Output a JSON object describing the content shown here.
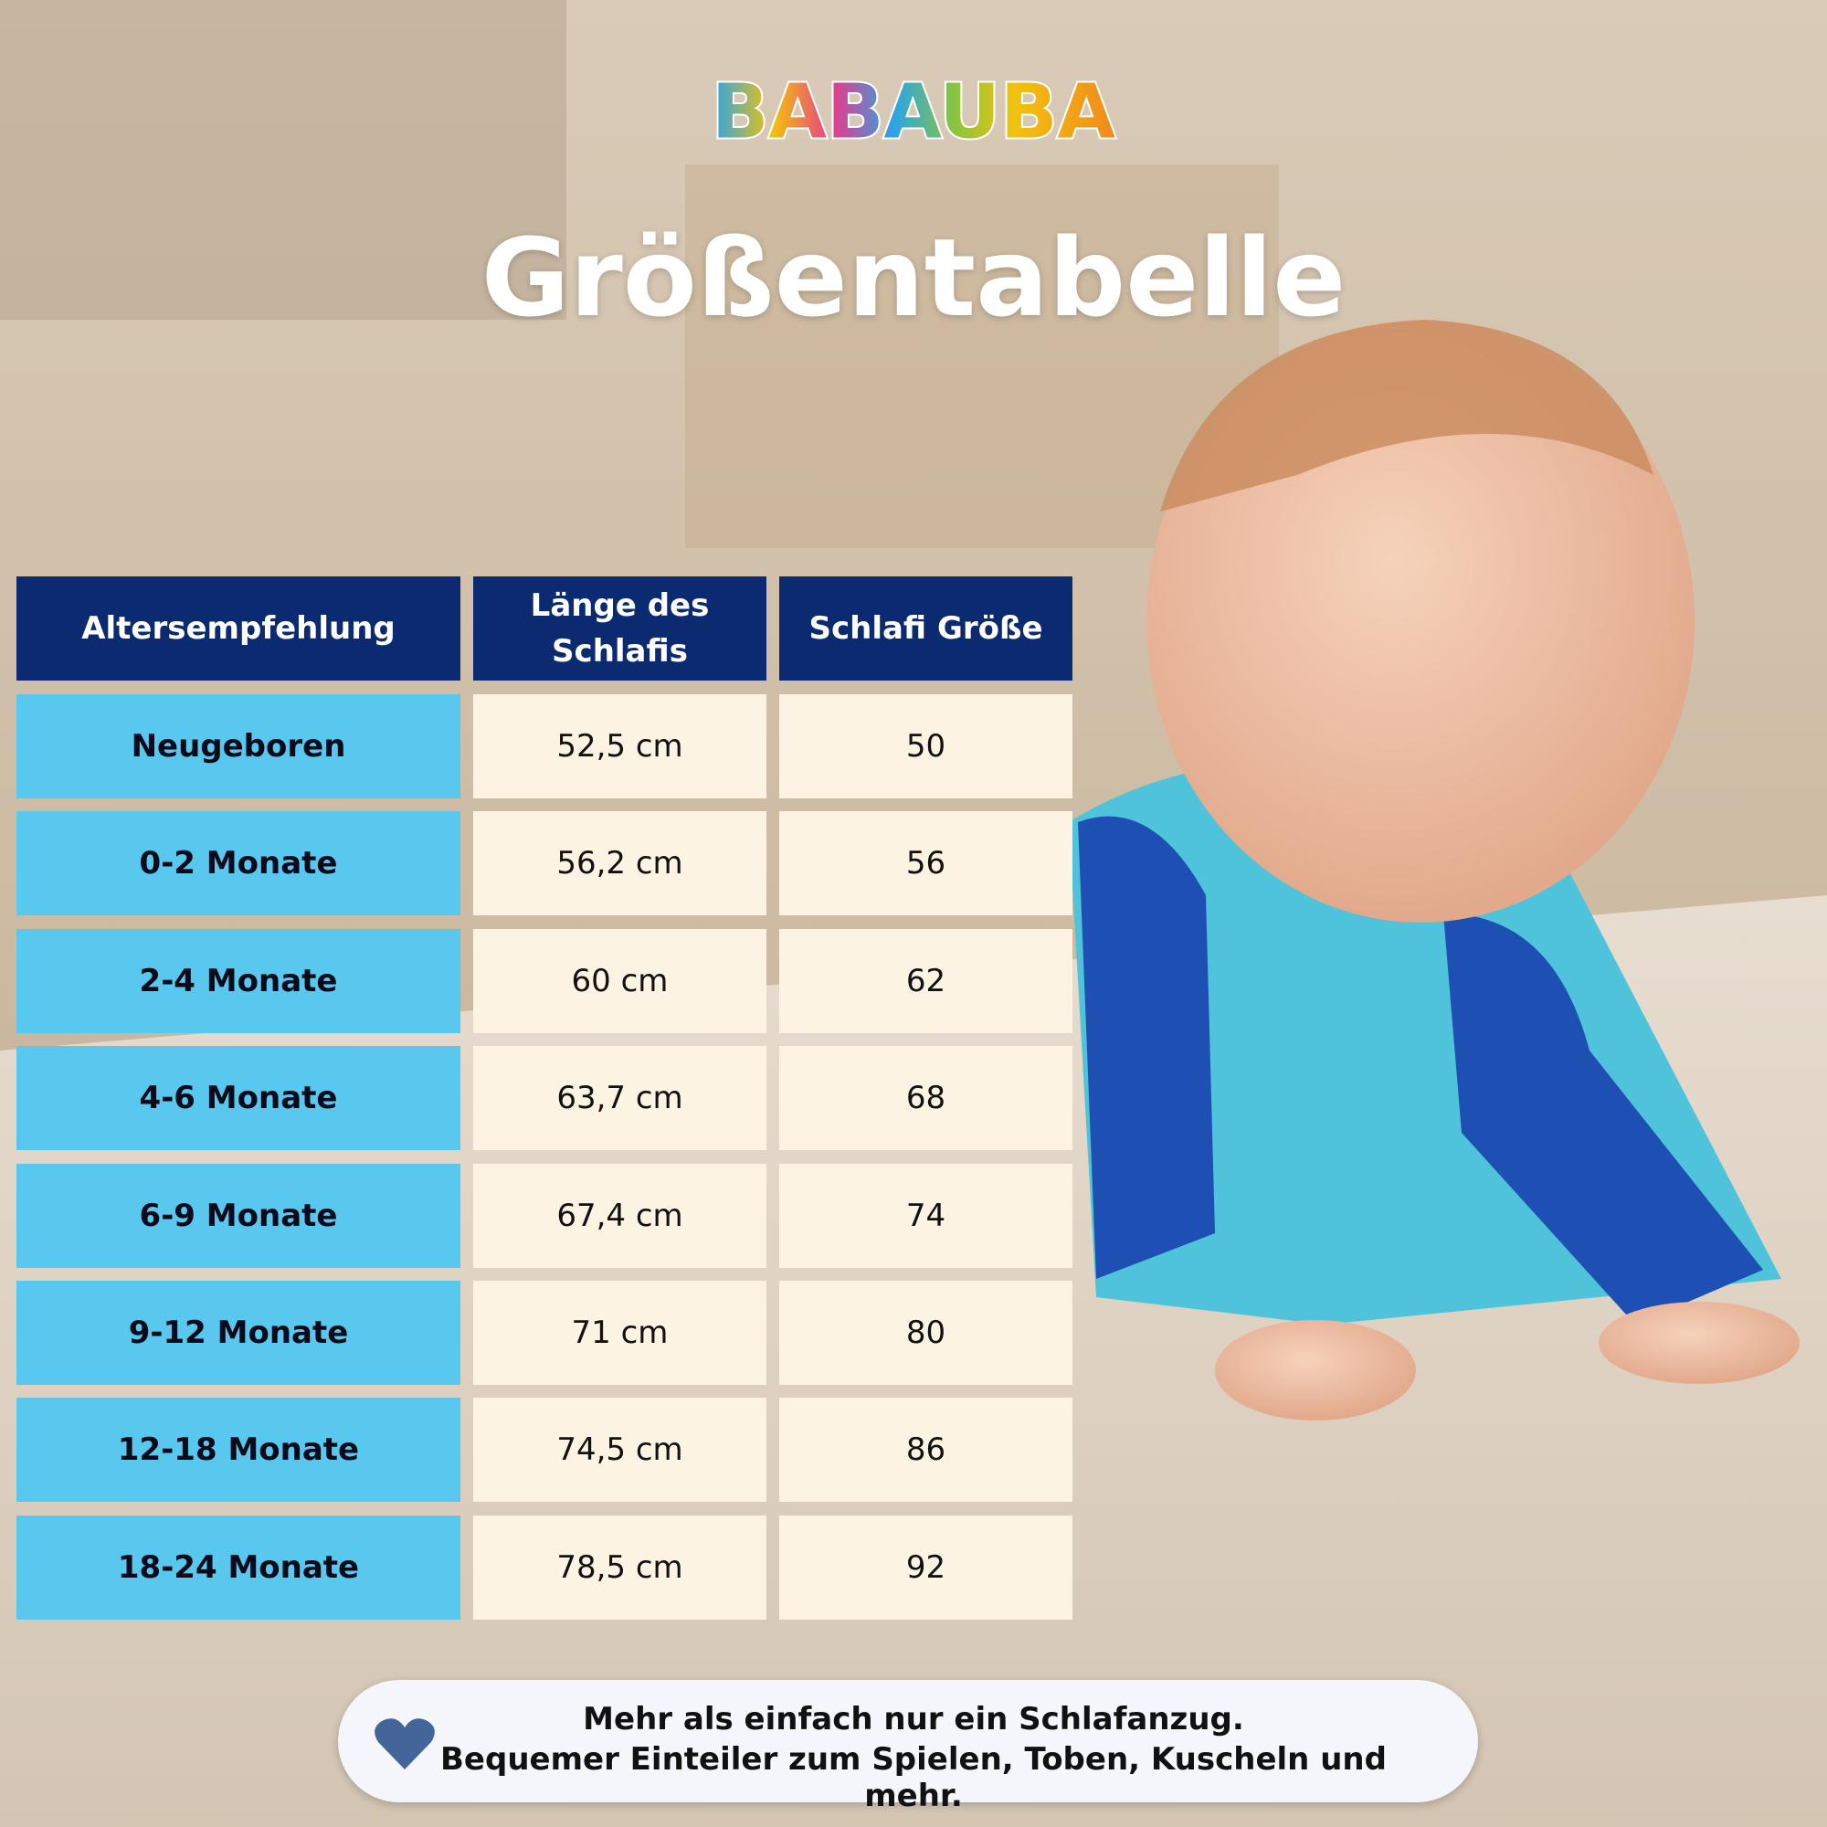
{
  "logo": "BABAUBA",
  "title": "Größentabelle",
  "table": {
    "header": [
      "Altersempfehlung",
      "Länge des Schlafis",
      "Schlafi Größe"
    ],
    "rows": [
      [
        "Neugeboren",
        "52,5 cm",
        "50"
      ],
      [
        "0-2 Monate",
        "56,2 cm",
        "56"
      ],
      [
        "2-4 Monate",
        "60 cm",
        "62"
      ],
      [
        "4-6 Monate",
        "63,7 cm",
        "68"
      ],
      [
        "6-9 Monate",
        "67,4 cm",
        "74"
      ],
      [
        "9-12 Monate",
        "71 cm",
        "80"
      ],
      [
        "12-18 Monate",
        "74,5 cm",
        "86"
      ],
      [
        "18-24 Monate",
        "78,5 cm",
        "92"
      ]
    ]
  },
  "footer": {
    "lines": [
      "Mehr als einfach nur ein Schlafanzug.",
      "Bequemer Einteiler zum Spielen, Toben, Kuscheln und mehr."
    ]
  }
}
